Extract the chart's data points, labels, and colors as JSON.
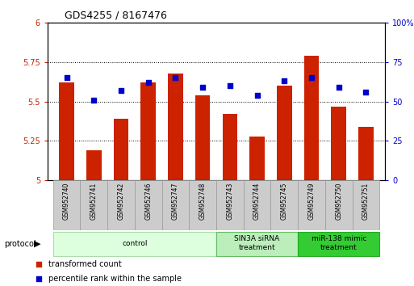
{
  "title": "GDS4255 / 8167476",
  "samples": [
    "GSM952740",
    "GSM952741",
    "GSM952742",
    "GSM952746",
    "GSM952747",
    "GSM952748",
    "GSM952743",
    "GSM952744",
    "GSM952745",
    "GSM952749",
    "GSM952750",
    "GSM952751"
  ],
  "transformed_count": [
    5.62,
    5.19,
    5.39,
    5.62,
    5.68,
    5.54,
    5.42,
    5.28,
    5.6,
    5.79,
    5.47,
    5.34
  ],
  "percentile_rank": [
    65,
    51,
    57,
    62,
    65,
    59,
    60,
    54,
    63,
    65,
    59,
    56
  ],
  "bar_color": "#cc2200",
  "dot_color": "#0000cc",
  "ylim_left": [
    5.0,
    6.0
  ],
  "ylim_right": [
    0,
    100
  ],
  "yticks_left": [
    5.0,
    5.25,
    5.5,
    5.75,
    6.0
  ],
  "yticks_right": [
    0,
    25,
    50,
    75,
    100
  ],
  "ytick_labels_left": [
    "5",
    "5.25",
    "5.5",
    "5.75",
    "6"
  ],
  "ytick_labels_right": [
    "0",
    "25",
    "50",
    "75",
    "100%"
  ],
  "groups": [
    {
      "label": "control",
      "start": 0,
      "end": 6,
      "color": "#ddffdd",
      "border": "#aaddaa"
    },
    {
      "label": "SIN3A siRNA\ntreatment",
      "start": 6,
      "end": 9,
      "color": "#bbeebb",
      "border": "#66bb66"
    },
    {
      "label": "miR-138 mimic\ntreatment",
      "start": 9,
      "end": 12,
      "color": "#33cc33",
      "border": "#22aa22"
    }
  ],
  "bar_width": 0.55,
  "grid_color": "#000000",
  "bar_color_rgb": "#cc2200",
  "dot_color_rgb": "#0000cc",
  "left_tick_color": "#cc2200",
  "right_tick_color": "#0000cc",
  "legend_items": [
    {
      "label": "transformed count",
      "color": "#cc2200"
    },
    {
      "label": "percentile rank within the sample",
      "color": "#0000cc"
    }
  ]
}
